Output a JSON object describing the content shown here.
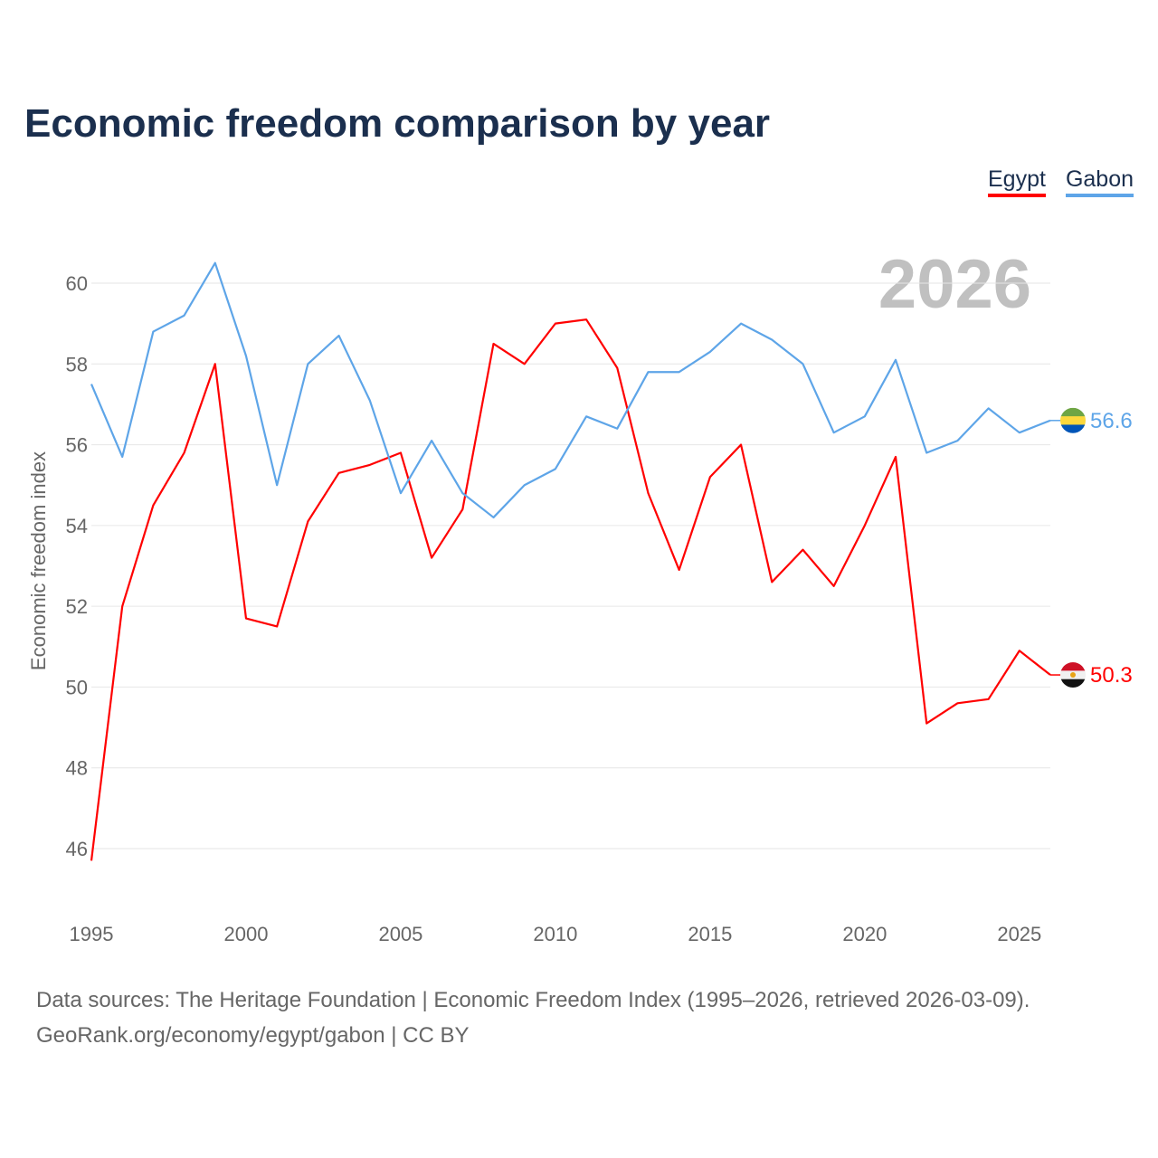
{
  "title": "Economic freedom comparison by year",
  "chart_data": {
    "type": "line",
    "title": "Economic freedom comparison by year",
    "xlabel": "",
    "ylabel": "Economic freedom index",
    "xlim": [
      1995,
      2026
    ],
    "ylim": [
      45.5,
      61
    ],
    "yticks": [
      46,
      48,
      50,
      52,
      54,
      56,
      58,
      60
    ],
    "xticks": [
      1995,
      2000,
      2005,
      2010,
      2015,
      2020,
      2025
    ],
    "grid": true,
    "legend_position": "top-right",
    "year_watermark": "2026",
    "x": [
      1995,
      1996,
      1997,
      1998,
      1999,
      2000,
      2001,
      2002,
      2003,
      2004,
      2005,
      2006,
      2007,
      2008,
      2009,
      2010,
      2011,
      2012,
      2013,
      2014,
      2015,
      2016,
      2017,
      2018,
      2019,
      2020,
      2021,
      2022,
      2023,
      2024,
      2025,
      2026
    ],
    "series": [
      {
        "name": "Egypt",
        "color": "#ff0000",
        "end_label": "50.3",
        "values": [
          45.7,
          52.0,
          54.5,
          55.8,
          58.0,
          51.7,
          51.5,
          54.1,
          55.3,
          55.5,
          55.8,
          53.2,
          54.4,
          58.5,
          58.0,
          59.0,
          59.1,
          57.9,
          54.8,
          52.9,
          55.2,
          56.0,
          52.6,
          53.4,
          52.5,
          54.0,
          55.7,
          49.1,
          49.6,
          49.7,
          50.9,
          50.3
        ]
      },
      {
        "name": "Gabon",
        "color": "#5ea5e8",
        "end_label": "56.6",
        "values": [
          57.5,
          55.7,
          58.8,
          59.2,
          60.5,
          58.2,
          55.0,
          58.0,
          58.7,
          57.1,
          54.8,
          56.1,
          54.8,
          54.2,
          55.0,
          55.4,
          56.7,
          56.4,
          57.8,
          57.8,
          58.3,
          59.0,
          58.6,
          58.0,
          56.3,
          56.7,
          58.1,
          55.8,
          56.1,
          56.9,
          56.3,
          56.6
        ]
      }
    ]
  },
  "footer": {
    "line1": "Data sources: The Heritage Foundation | Economic Freedom Index (1995–2026, retrieved 2026-03-09).",
    "line2": "GeoRank.org/economy/egypt/gabon | CC BY"
  }
}
